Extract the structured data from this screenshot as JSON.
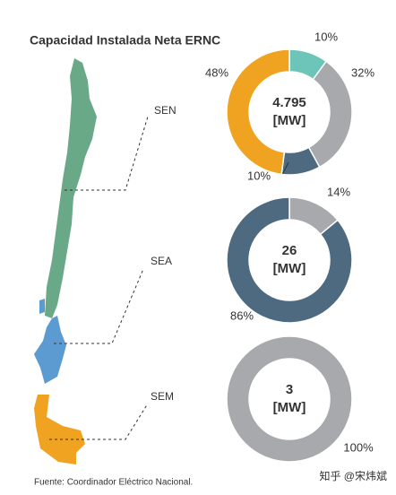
{
  "title": "Capacidad Instalada Neta ERNC",
  "source": "Fuente: Coordinador Eléctrico Nacional.",
  "watermark": "知乎 @宋炜斌",
  "chart_data": [
    {
      "type": "pie",
      "title": "SEN",
      "center_label": "4.795",
      "unit": "[MW]",
      "values": [
        10,
        32,
        10,
        48
      ],
      "value_labels": [
        "10%",
        "32%",
        "10%",
        "48%"
      ],
      "colors": [
        "#6cc5b8",
        "#a7a9ac",
        "#4d6a80",
        "#f0a321"
      ]
    },
    {
      "type": "pie",
      "title": "SEA",
      "center_label": "26",
      "unit": "[MW]",
      "values": [
        14,
        86
      ],
      "value_labels": [
        "14%",
        "86%"
      ],
      "colors": [
        "#a7a9ac",
        "#4d6a80"
      ]
    },
    {
      "type": "pie",
      "title": "SEM",
      "center_label": "3",
      "unit": "[MW]",
      "values": [
        100
      ],
      "value_labels": [
        "100%"
      ],
      "colors": [
        "#a7a9ac"
      ]
    }
  ]
}
